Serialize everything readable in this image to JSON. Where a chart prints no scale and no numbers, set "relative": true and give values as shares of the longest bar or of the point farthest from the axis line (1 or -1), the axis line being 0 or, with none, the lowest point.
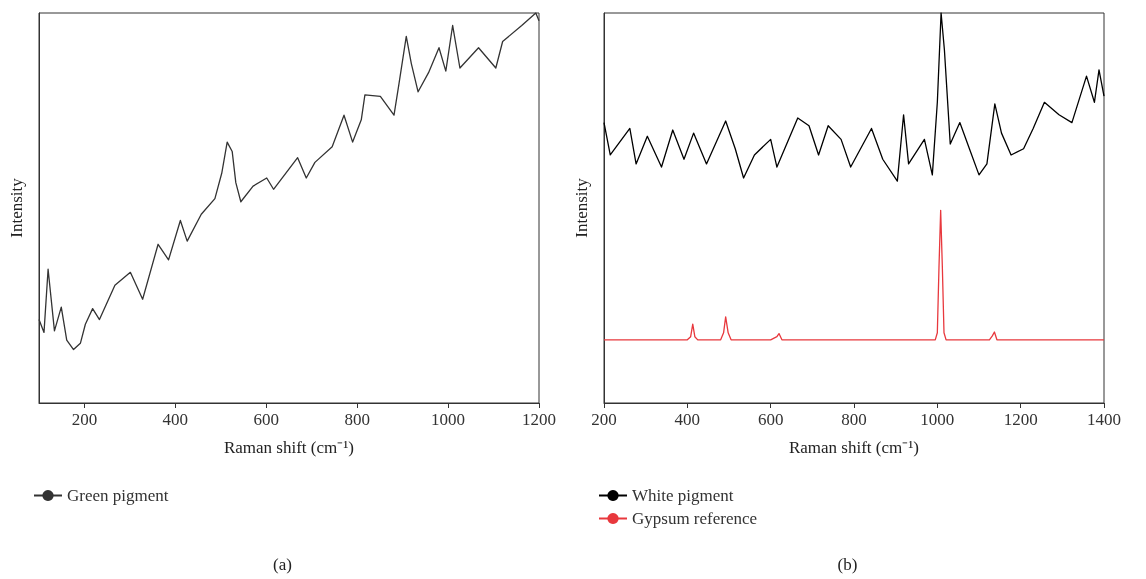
{
  "chart_data": [
    {
      "type": "line",
      "xlabel": "Raman shift (cm⁻¹)",
      "ylabel": "Intensity",
      "relative": true,
      "xlim": [
        100,
        1200
      ],
      "xticks": [
        200,
        400,
        600,
        800,
        1000,
        1200
      ],
      "tick_labels": "x",
      "legend": "bottom",
      "grid": false,
      "marker": "none",
      "line_style": "solid",
      "annotations": [
        "(a)"
      ],
      "series": [
        {
          "name": "Green pigment",
          "color": "#333333",
          "x": [
            100,
            111,
            120,
            134,
            149,
            161,
            176,
            191,
            202,
            218,
            233,
            267,
            301,
            328,
            362,
            385,
            411,
            426,
            457,
            487,
            502,
            514,
            525,
            533,
            544,
            571,
            601,
            616,
            669,
            688,
            707,
            745,
            771,
            790,
            809,
            817,
            851,
            881,
            892,
            908,
            919,
            934,
            957,
            980,
            995,
            1010,
            1026,
            1067,
            1105,
            1120,
            1162,
            1193,
            1200
          ],
          "values": [
            0.214,
            0.181,
            0.343,
            0.185,
            0.246,
            0.161,
            0.137,
            0.153,
            0.202,
            0.242,
            0.214,
            0.302,
            0.335,
            0.266,
            0.407,
            0.367,
            0.468,
            0.415,
            0.484,
            0.524,
            0.589,
            0.669,
            0.645,
            0.565,
            0.516,
            0.556,
            0.577,
            0.548,
            0.629,
            0.577,
            0.617,
            0.657,
            0.738,
            0.669,
            0.726,
            0.79,
            0.786,
            0.738,
            0.819,
            0.94,
            0.871,
            0.798,
            0.847,
            0.911,
            0.851,
            0.968,
            0.859,
            0.911,
            0.859,
            0.927,
            0.968,
            1.0,
            0.98
          ]
        }
      ]
    },
    {
      "type": "line",
      "xlabel": "Raman shift (cm⁻¹)",
      "ylabel": "Intensity",
      "relative": true,
      "xlim": [
        200,
        1400
      ],
      "xticks": [
        200,
        400,
        600,
        800,
        1000,
        1200,
        1400
      ],
      "tick_labels": "x",
      "legend": "bottom",
      "grid": false,
      "marker": "none",
      "line_style": "solid",
      "annotations": [
        "(b)"
      ],
      "series": [
        {
          "name": "White pigment",
          "color": "#000000",
          "x": [
            200,
            215,
            262,
            277,
            304,
            338,
            365,
            392,
            415,
            446,
            492,
            515,
            535,
            561,
            600,
            615,
            665,
            692,
            715,
            738,
            769,
            792,
            842,
            869,
            904,
            919,
            931,
            969,
            988,
            1000,
            1009,
            1017,
            1031,
            1054,
            1077,
            1100,
            1119,
            1138,
            1154,
            1177,
            1207,
            1230,
            1257,
            1292,
            1323,
            1358,
            1377,
            1388,
            1400
          ],
          "values": [
            0.719,
            0.636,
            0.704,
            0.613,
            0.684,
            0.605,
            0.7,
            0.625,
            0.692,
            0.613,
            0.723,
            0.652,
            0.577,
            0.636,
            0.676,
            0.605,
            0.731,
            0.711,
            0.636,
            0.711,
            0.676,
            0.605,
            0.704,
            0.625,
            0.569,
            0.739,
            0.613,
            0.676,
            0.585,
            0.771,
            1.0,
            0.905,
            0.664,
            0.719,
            0.652,
            0.585,
            0.613,
            0.767,
            0.692,
            0.636,
            0.652,
            0.704,
            0.771,
            0.739,
            0.719,
            0.838,
            0.771,
            0.854,
            0.787
          ]
        },
        {
          "name": "Gypsum reference",
          "color": "#e8383d",
          "x": [
            200,
            400,
            408,
            413,
            418,
            425,
            480,
            487,
            492,
            498,
            505,
            600,
            615,
            620,
            627,
            995,
            1000,
            1004,
            1008,
            1012,
            1016,
            1021,
            1125,
            1132,
            1137,
            1143,
            1400
          ],
          "values": [
            0.162,
            0.162,
            0.17,
            0.202,
            0.17,
            0.162,
            0.162,
            0.18,
            0.221,
            0.18,
            0.162,
            0.162,
            0.17,
            0.178,
            0.162,
            0.162,
            0.18,
            0.35,
            0.494,
            0.35,
            0.18,
            0.162,
            0.162,
            0.172,
            0.182,
            0.162,
            0.162
          ]
        }
      ]
    }
  ]
}
